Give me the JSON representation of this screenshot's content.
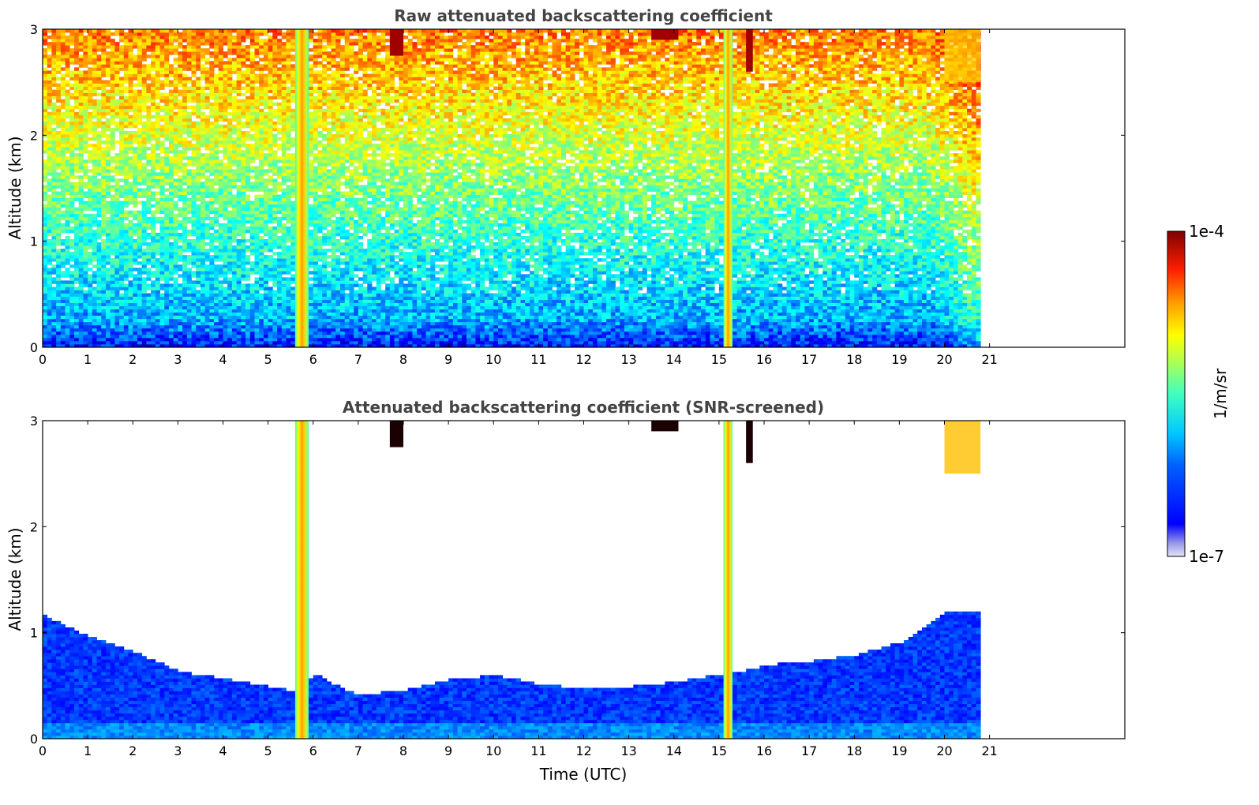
{
  "chart_data": [
    {
      "type": "heatmap",
      "title": "Raw attenuated backscattering coefficient",
      "xlabel": "",
      "ylabel": "Altitude (km)",
      "xlim": [
        0,
        24
      ],
      "ylim": [
        0,
        3
      ],
      "x_ticks": [
        "0",
        "1",
        "2",
        "3",
        "4",
        "5",
        "6",
        "7",
        "8",
        "9",
        "10",
        "11",
        "12",
        "13",
        "14",
        "15",
        "16",
        "17",
        "18",
        "19",
        "20",
        "21"
      ],
      "y_ticks": [
        "0",
        "1",
        "2",
        "3"
      ],
      "data_time_range_utc": [
        0,
        20.8
      ],
      "screened": false,
      "features": [
        {
          "kind": "precipitation_column",
          "t_start": 5.6,
          "t_end": 5.9
        },
        {
          "kind": "precipitation_column",
          "t_start": 15.1,
          "t_end": 15.3
        },
        {
          "kind": "cloud_base",
          "t_start": 7.7,
          "t_end": 8.0,
          "alt_km": 2.75
        },
        {
          "kind": "cloud_base",
          "t_start": 13.5,
          "t_end": 14.1,
          "alt_km": 2.9
        },
        {
          "kind": "cloud_base",
          "t_start": 15.6,
          "t_end": 15.75,
          "alt_km": 2.6
        },
        {
          "kind": "high_signal",
          "t_start": 20.0,
          "t_end": 20.8,
          "alt_km": 2.5
        }
      ]
    },
    {
      "type": "heatmap",
      "title": "Attenuated backscattering coefficient (SNR-screened)",
      "xlabel": "Time (UTC)",
      "ylabel": "Altitude (km)",
      "xlim": [
        0,
        24
      ],
      "ylim": [
        0,
        3
      ],
      "x_ticks": [
        "0",
        "1",
        "2",
        "3",
        "4",
        "5",
        "6",
        "7",
        "8",
        "9",
        "10",
        "11",
        "12",
        "13",
        "14",
        "15",
        "16",
        "17",
        "18",
        "19",
        "20",
        "21"
      ],
      "y_ticks": [
        "0",
        "1",
        "2",
        "3"
      ],
      "data_time_range_utc": [
        0,
        20.8
      ],
      "screened": true,
      "boundary_layer_top_km": [
        [
          0,
          1.15
        ],
        [
          1,
          0.95
        ],
        [
          2,
          0.8
        ],
        [
          3,
          0.62
        ],
        [
          4,
          0.55
        ],
        [
          5,
          0.48
        ],
        [
          5.6,
          0.42
        ],
        [
          6,
          0.6
        ],
        [
          6.5,
          0.48
        ],
        [
          7,
          0.4
        ],
        [
          8,
          0.45
        ],
        [
          9,
          0.55
        ],
        [
          10,
          0.58
        ],
        [
          11,
          0.5
        ],
        [
          12,
          0.45
        ],
        [
          13,
          0.48
        ],
        [
          14,
          0.52
        ],
        [
          15,
          0.6
        ],
        [
          15.5,
          0.62
        ],
        [
          16,
          0.68
        ],
        [
          17,
          0.72
        ],
        [
          18,
          0.78
        ],
        [
          19,
          0.9
        ],
        [
          19.6,
          1.05
        ],
        [
          20.2,
          1.25
        ],
        [
          20.8,
          1.35
        ]
      ]
    }
  ],
  "colorbar": {
    "max_label": "1e-4",
    "min_label": "1e-7",
    "unit_label": "1/m/sr",
    "colormap": "jet",
    "scale": "log",
    "range": [
      1e-07,
      0.0001
    ]
  }
}
